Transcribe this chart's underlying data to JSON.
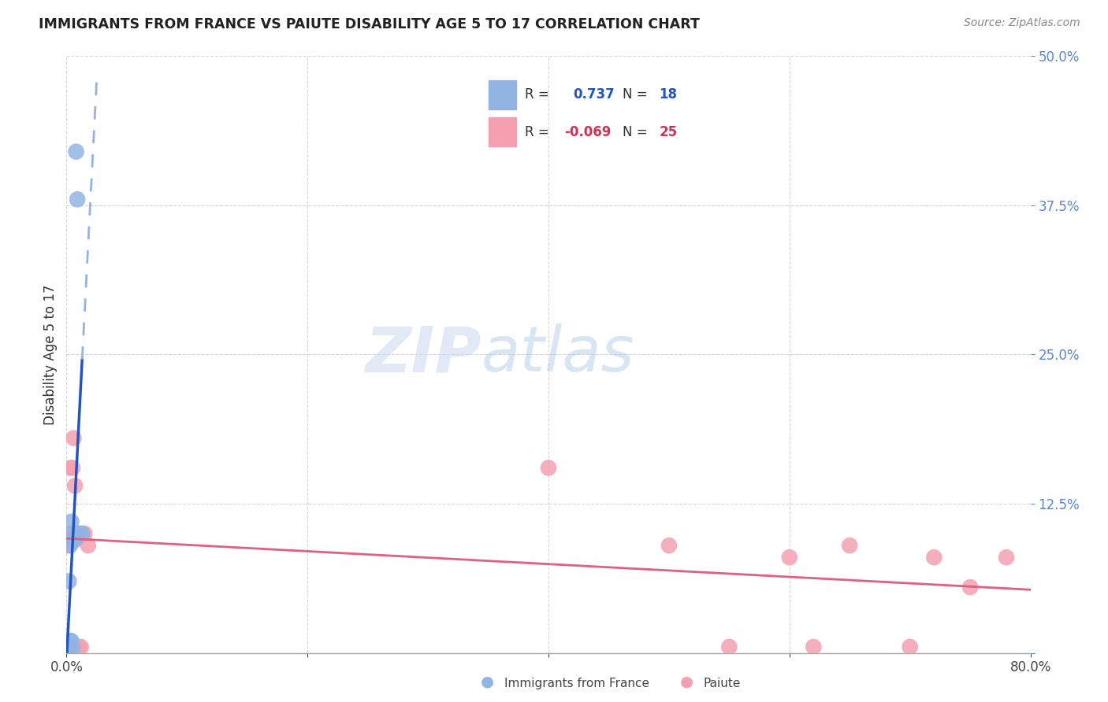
{
  "title": "IMMIGRANTS FROM FRANCE VS PAIUTE DISABILITY AGE 5 TO 17 CORRELATION CHART",
  "source": "Source: ZipAtlas.com",
  "ylabel": "Disability Age 5 to 17",
  "xlim": [
    0.0,
    0.8
  ],
  "ylim": [
    0.0,
    0.5
  ],
  "xticks": [
    0.0,
    0.2,
    0.4,
    0.6,
    0.8
  ],
  "yticks": [
    0.0,
    0.125,
    0.25,
    0.375,
    0.5
  ],
  "blue_R": 0.737,
  "blue_N": 18,
  "pink_R": -0.069,
  "pink_N": 25,
  "blue_color": "#92b4e3",
  "pink_color": "#f4a0b0",
  "blue_line_color": "#2255bb",
  "pink_line_color": "#e06080",
  "blue_scatter_x": [
    0.001,
    0.001,
    0.002,
    0.002,
    0.002,
    0.003,
    0.003,
    0.003,
    0.004,
    0.004,
    0.005,
    0.005,
    0.006,
    0.007,
    0.008,
    0.009,
    0.011,
    0.013
  ],
  "blue_scatter_y": [
    0.005,
    0.01,
    0.005,
    0.01,
    0.06,
    0.005,
    0.01,
    0.09,
    0.01,
    0.11,
    0.005,
    0.1,
    0.095,
    0.095,
    0.42,
    0.38,
    0.1,
    0.1
  ],
  "pink_scatter_x": [
    0.001,
    0.001,
    0.002,
    0.002,
    0.003,
    0.004,
    0.005,
    0.006,
    0.007,
    0.008,
    0.009,
    0.01,
    0.012,
    0.015,
    0.018,
    0.4,
    0.5,
    0.55,
    0.6,
    0.62,
    0.65,
    0.7,
    0.72,
    0.75,
    0.78
  ],
  "pink_scatter_y": [
    0.095,
    0.1,
    0.005,
    0.09,
    0.155,
    0.095,
    0.155,
    0.18,
    0.14,
    0.095,
    0.1,
    0.005,
    0.005,
    0.1,
    0.09,
    0.155,
    0.09,
    0.005,
    0.08,
    0.005,
    0.09,
    0.005,
    0.08,
    0.055,
    0.08
  ]
}
